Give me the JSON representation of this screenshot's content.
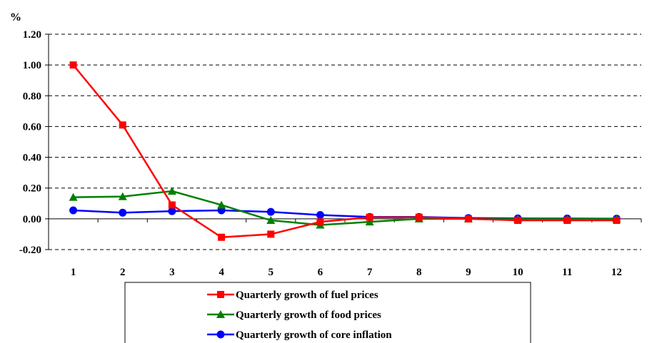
{
  "chart_data": {
    "type": "line",
    "ylabel": "%",
    "x": [
      "1",
      "2",
      "3",
      "4",
      "5",
      "6",
      "7",
      "8",
      "9",
      "10",
      "11",
      "12"
    ],
    "ylim": [
      -0.2,
      1.2
    ],
    "yticks": [
      "1.20",
      "1.00",
      "0.80",
      "0.60",
      "0.40",
      "0.20",
      "0.00",
      "-0.20"
    ],
    "grid": true,
    "legend_position": "bottom",
    "series": [
      {
        "name": "Quarterly growth of fuel prices",
        "color": "#ff0000",
        "marker": "square",
        "values": [
          1.0,
          0.61,
          0.09,
          -0.12,
          -0.1,
          -0.02,
          0.01,
          0.01,
          0.0,
          -0.01,
          -0.01,
          -0.01
        ]
      },
      {
        "name": "Quarterly growth of food prices",
        "color": "#008000",
        "marker": "triangle",
        "values": [
          0.14,
          0.145,
          0.18,
          0.09,
          -0.01,
          -0.04,
          -0.02,
          0.0,
          0.0,
          0.0,
          0.0,
          0.0
        ]
      },
      {
        "name": "Quarterly growth of core inflation",
        "color": "#0000ff",
        "marker": "circle",
        "values": [
          0.055,
          0.04,
          0.05,
          0.055,
          0.045,
          0.025,
          0.012,
          0.012,
          0.005,
          0.003,
          0.002,
          0.001
        ]
      }
    ]
  }
}
